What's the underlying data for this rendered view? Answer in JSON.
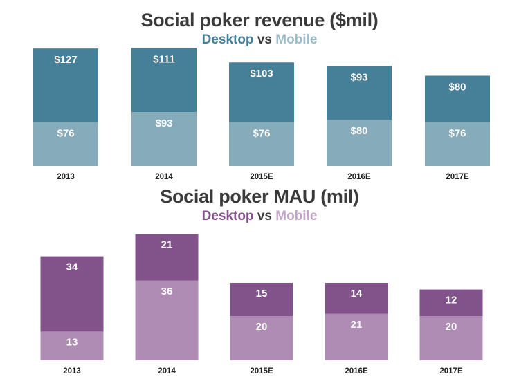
{
  "charts": {
    "revenue": {
      "title": "Social poker revenue ($mil)",
      "subtitle_desktop": "Desktop",
      "subtitle_vs": "vs",
      "subtitle_mobile": "Mobile"
    },
    "mau": {
      "title": "Social poker MAU (mil)",
      "subtitle_desktop": "Desktop",
      "subtitle_vs": "vs",
      "subtitle_mobile": "Mobile"
    }
  },
  "colors": {
    "rev_desktop": "#457f98",
    "rev_mobile": "#86abbb",
    "mau_desktop": "#82528a",
    "mau_mobile": "#ae8cb3"
  },
  "chart_data": [
    {
      "type": "bar",
      "stacked": true,
      "title": "Social poker revenue ($mil)",
      "subtitle": "Desktop vs Mobile",
      "categories": [
        "2013",
        "2014",
        "2015E",
        "2016E",
        "2017E"
      ],
      "series": [
        {
          "name": "Mobile",
          "values": [
            76,
            93,
            76,
            80,
            76
          ],
          "labels": [
            "$76",
            "$93",
            "$76",
            "$80",
            "$76"
          ]
        },
        {
          "name": "Desktop",
          "values": [
            127,
            111,
            103,
            93,
            80
          ],
          "labels": [
            "$127",
            "$111",
            "$103",
            "$93",
            "$80"
          ]
        }
      ],
      "ylabel": "",
      "xlabel": "",
      "grid": false
    },
    {
      "type": "bar",
      "stacked": true,
      "title": "Social poker MAU (mil)",
      "subtitle": "Desktop vs Mobile",
      "categories": [
        "2013",
        "2014",
        "2015E",
        "2016E",
        "2017E"
      ],
      "series": [
        {
          "name": "Mobile",
          "values": [
            13,
            36,
            20,
            21,
            20
          ],
          "labels": [
            "13",
            "36",
            "20",
            "21",
            "20"
          ]
        },
        {
          "name": "Desktop",
          "values": [
            34,
            21,
            15,
            14,
            12
          ],
          "labels": [
            "34",
            "21",
            "15",
            "14",
            "12"
          ]
        }
      ],
      "ylabel": "",
      "xlabel": "",
      "grid": false
    }
  ]
}
